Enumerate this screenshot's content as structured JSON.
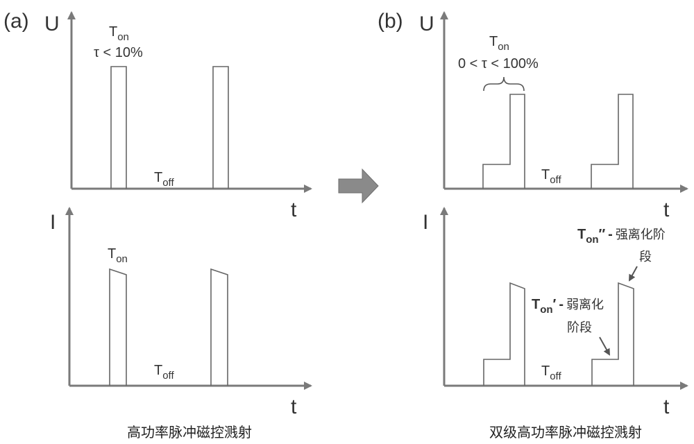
{
  "panel_a": {
    "label": "(a)",
    "caption": "高功率脉冲磁控溅射",
    "u_axis": {
      "label": "U",
      "t_label": "t"
    },
    "i_axis": {
      "label": "I",
      "t_label": "t"
    },
    "u_ton": {
      "main": "T",
      "sub": "on"
    },
    "u_tau": "τ < 10%",
    "u_toff": {
      "main": "T",
      "sub": "off"
    },
    "i_ton": {
      "main": "T",
      "sub": "on"
    },
    "i_toff": {
      "main": "T",
      "sub": "off"
    }
  },
  "panel_b": {
    "label": "(b)",
    "caption": "双级高功率脉冲磁控溅射",
    "u_axis": {
      "label": "U",
      "t_label": "t"
    },
    "i_axis": {
      "label": "I",
      "t_label": "t"
    },
    "u_ton": {
      "main": "T",
      "sub": "on"
    },
    "u_tau": "0 < τ < 100%",
    "u_toff": {
      "main": "T",
      "sub": "off"
    },
    "i_toff": {
      "main": "T",
      "sub": "off"
    },
    "strong_note": {
      "main": "T",
      "sub": "on",
      "prime": "′′",
      "dash": "-",
      "text_1": "强离化阶",
      "text_2": "段"
    },
    "weak_note": {
      "main": "T",
      "sub": "on",
      "prime": "′",
      "dash": "-",
      "text_1": "弱离化",
      "text_2": "阶段"
    }
  },
  "arrow": {
    "icon": "right-arrow-icon",
    "color": "#8a8a8a"
  }
}
